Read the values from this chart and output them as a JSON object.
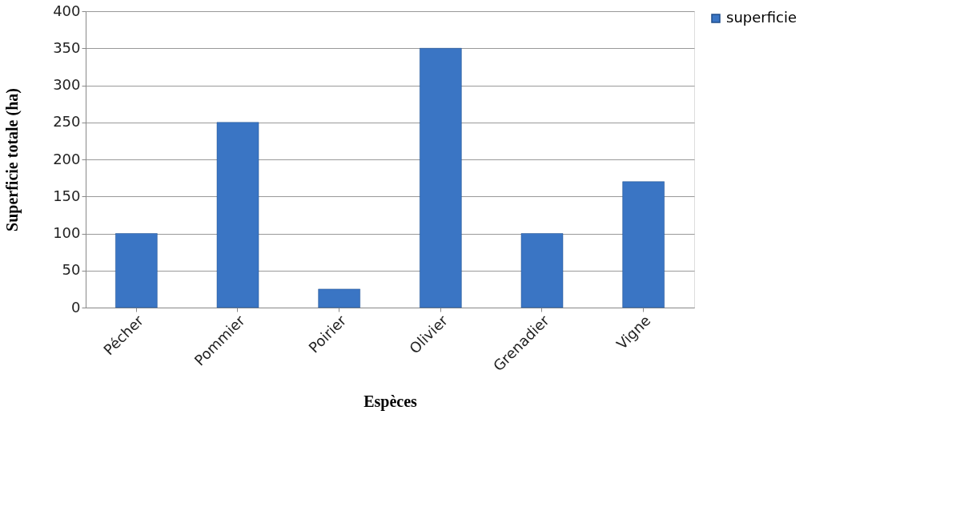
{
  "chart_data": {
    "type": "bar",
    "xlabel": "Espèces",
    "ylabel": "Superficie totale (ha)",
    "categories": [
      "Pécher",
      "Pommier",
      "Poirier",
      "Olivier",
      "Grenadier",
      "Vigne"
    ],
    "series": [
      {
        "name": "superficie",
        "color": "#3a75c4",
        "values": [
          100,
          250,
          25,
          350,
          100,
          170
        ]
      }
    ],
    "ylim": [
      0,
      400
    ],
    "yticks": [
      0,
      50,
      100,
      150,
      200,
      250,
      300,
      350,
      400
    ],
    "grid": "y",
    "legend": "right"
  }
}
